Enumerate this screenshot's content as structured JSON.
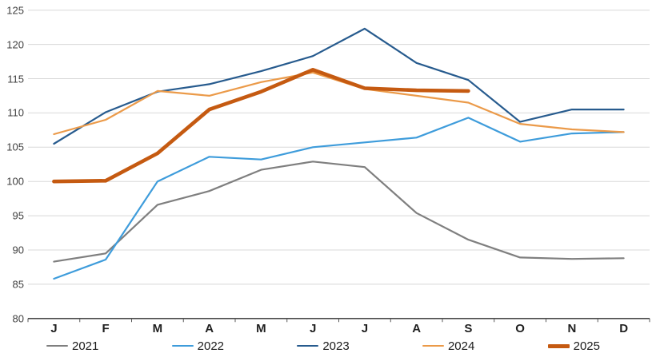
{
  "chart_data": {
    "type": "line",
    "title": "",
    "xlabel": "",
    "ylabel": "",
    "categories": [
      "J",
      "F",
      "M",
      "A",
      "M",
      "J",
      "J",
      "A",
      "S",
      "O",
      "N",
      "D"
    ],
    "ylim": [
      80,
      125
    ],
    "y_tick_step": 5,
    "y_ticks": [
      80,
      85,
      90,
      95,
      100,
      105,
      110,
      115,
      120,
      125
    ],
    "grid": true,
    "legend_position": "bottom",
    "series": [
      {
        "name": "2021",
        "color": "#7F7F7F",
        "stroke_width": 2.2,
        "values": [
          88.3,
          89.5,
          96.6,
          98.6,
          101.7,
          102.9,
          102.1,
          95.4,
          91.5,
          88.9,
          88.7,
          88.8
        ]
      },
      {
        "name": "2022",
        "color": "#3E9CDB",
        "stroke_width": 2.2,
        "values": [
          85.8,
          88.6,
          100.0,
          103.6,
          103.2,
          105.0,
          105.7,
          106.4,
          109.3,
          105.8,
          107.0,
          107.2
        ]
      },
      {
        "name": "2023",
        "color": "#275B8E",
        "stroke_width": 2.2,
        "values": [
          105.5,
          110.1,
          113.1,
          114.2,
          116.1,
          118.3,
          122.3,
          117.3,
          114.8,
          108.7,
          110.5,
          110.5
        ]
      },
      {
        "name": "2024",
        "color": "#EB9A49",
        "stroke_width": 2.2,
        "values": [
          106.9,
          109.0,
          113.2,
          112.5,
          114.5,
          115.9,
          113.5,
          112.5,
          111.5,
          108.4,
          107.6,
          107.2
        ]
      },
      {
        "name": "2025",
        "color": "#C55A11",
        "stroke_width": 4.6,
        "values": [
          100.0,
          100.1,
          104.1,
          110.5,
          113.1,
          116.3,
          113.6,
          113.3,
          113.2
        ]
      }
    ]
  },
  "style": {
    "gridline_color": "#D8D8D8",
    "axis_color": "#2b2b2b",
    "tick_color": "#595959",
    "background": "#ffffff"
  }
}
